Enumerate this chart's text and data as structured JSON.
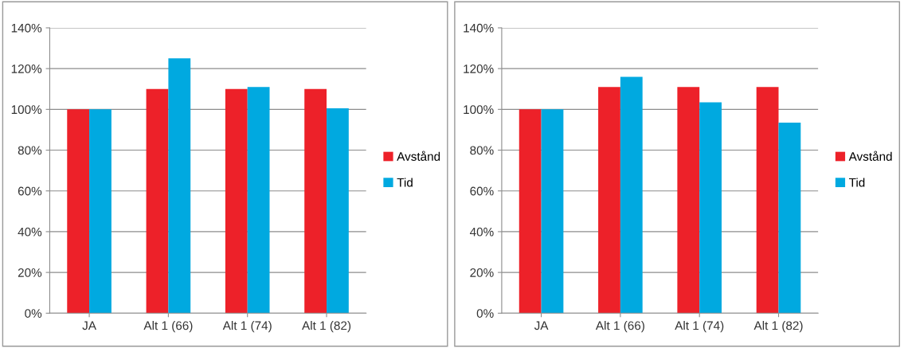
{
  "chart_data": [
    {
      "type": "bar",
      "categories": [
        "JA",
        "Alt 1 (66)",
        "Alt 1 (74)",
        "Alt 1 (82)"
      ],
      "series": [
        {
          "name": "Avstånd",
          "color": "#ed2129",
          "values": [
            100,
            110,
            110,
            110
          ]
        },
        {
          "name": "Tid",
          "color": "#00a9e0",
          "values": [
            100,
            125,
            111,
            100.5
          ]
        }
      ],
      "ylim": [
        0,
        140
      ],
      "yticks": [
        {
          "value": 0,
          "label": "0%"
        },
        {
          "value": 20,
          "label": "20%"
        },
        {
          "value": 40,
          "label": "40%"
        },
        {
          "value": 60,
          "label": "60%"
        },
        {
          "value": 80,
          "label": "80%"
        },
        {
          "value": 100,
          "label": "100%"
        },
        {
          "value": 120,
          "label": "120%"
        },
        {
          "value": 140,
          "label": "140%"
        }
      ],
      "grid": "y",
      "legend": "right"
    },
    {
      "type": "bar",
      "categories": [
        "JA",
        "Alt 1 (66)",
        "Alt 1 (74)",
        "Alt 1 (82)"
      ],
      "series": [
        {
          "name": "Avstånd",
          "color": "#ed2129",
          "values": [
            100,
            111,
            111,
            111
          ]
        },
        {
          "name": "Tid",
          "color": "#00a9e0",
          "values": [
            100,
            116,
            103.5,
            93.5
          ]
        }
      ],
      "ylim": [
        0,
        140
      ],
      "yticks": [
        {
          "value": 0,
          "label": "0%"
        },
        {
          "value": 20,
          "label": "20%"
        },
        {
          "value": 40,
          "label": "40%"
        },
        {
          "value": 60,
          "label": "60%"
        },
        {
          "value": 80,
          "label": "80%"
        },
        {
          "value": 100,
          "label": "100%"
        },
        {
          "value": 120,
          "label": "120%"
        },
        {
          "value": 140,
          "label": "140%"
        }
      ],
      "grid": "y",
      "legend": "right"
    }
  ]
}
